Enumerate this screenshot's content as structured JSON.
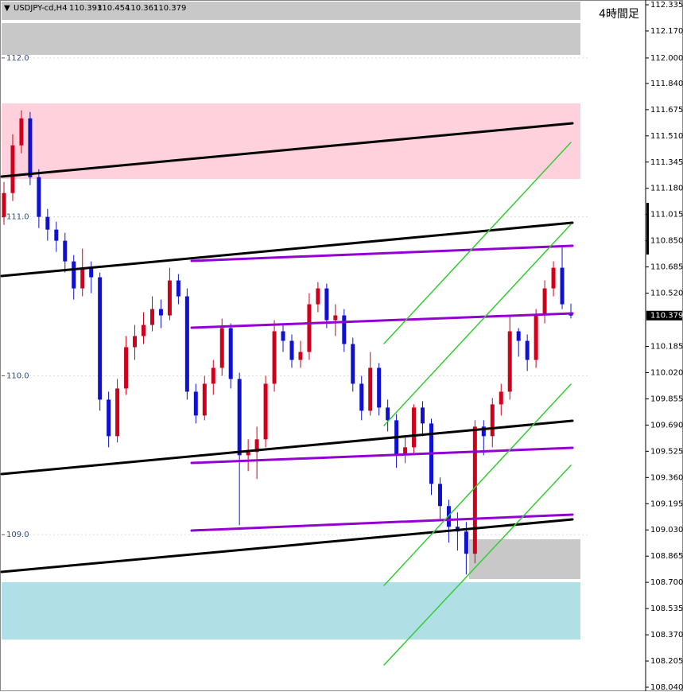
{
  "chart_data": {
    "type": "candlestick",
    "symbol": "USDJPY-cd,H4",
    "timeframe_label": "4時間足",
    "up_color": "#d0001a",
    "down_color": "#1010d0",
    "ylim": [
      108.02,
      112.365
    ],
    "yticks": [
      {
        "value": 112.335,
        "label": "112.335"
      },
      {
        "value": 112.17,
        "label": "112.170"
      },
      {
        "value": 112.0,
        "label": "112.000"
      },
      {
        "value": 111.84,
        "label": "111.840"
      },
      {
        "value": 111.675,
        "label": "111.675"
      },
      {
        "value": 111.51,
        "label": "111.510"
      },
      {
        "value": 111.345,
        "label": "111.345"
      },
      {
        "value": 111.18,
        "label": "111.180"
      },
      {
        "value": 111.015,
        "label": "111.015"
      },
      {
        "value": 110.85,
        "label": "110.850"
      },
      {
        "value": 110.685,
        "label": "110.685"
      },
      {
        "value": 110.52,
        "label": "110.520"
      },
      {
        "value": 110.185,
        "label": "110.185"
      },
      {
        "value": 110.02,
        "label": "110.020"
      },
      {
        "value": 109.855,
        "label": "109.855"
      },
      {
        "value": 109.69,
        "label": "109.690"
      },
      {
        "value": 109.525,
        "label": "109.525"
      },
      {
        "value": 109.36,
        "label": "109.360"
      },
      {
        "value": 109.195,
        "label": "109.195"
      },
      {
        "value": 109.03,
        "label": "109.030"
      },
      {
        "value": 108.865,
        "label": "108.865"
      },
      {
        "value": 108.7,
        "label": "108.700"
      },
      {
        "value": 108.535,
        "label": "108.535"
      },
      {
        "value": 108.37,
        "label": "108.370"
      },
      {
        "value": 108.205,
        "label": "108.205"
      },
      {
        "value": 108.04,
        "label": "108.040"
      }
    ],
    "level_ticks": [
      {
        "value": 112,
        "label": "112.0"
      },
      {
        "value": 111,
        "label": "111.0"
      },
      {
        "value": 110,
        "label": "110.0"
      },
      {
        "value": 109,
        "label": "109.0"
      }
    ],
    "grid": true,
    "open": [
      111.0,
      111.15,
      111.45,
      111.62,
      111.25,
      111.0,
      110.92,
      110.85,
      110.72,
      110.55,
      110.68,
      110.62,
      109.85,
      109.62,
      109.92,
      110.18,
      110.25,
      110.32,
      110.42,
      110.38,
      110.6,
      110.5,
      109.9,
      109.75,
      109.95,
      110.05,
      110.3,
      109.98,
      109.5,
      109.52,
      109.6,
      109.95,
      110.28,
      110.22,
      110.1,
      110.15,
      110.45,
      110.55,
      110.35,
      110.38,
      110.2,
      109.95,
      109.78,
      110.05,
      109.8,
      109.72,
      109.5,
      109.55,
      109.8,
      109.7,
      109.32,
      109.18,
      109.05,
      109.02,
      108.88,
      109.68,
      109.62,
      109.82,
      109.9,
      110.28,
      110.22,
      110.1,
      110.38,
      110.55,
      110.68,
      110.393
    ],
    "high": [
      111.22,
      111.52,
      111.67,
      111.66,
      111.3,
      111.05,
      110.97,
      110.9,
      110.76,
      110.8,
      110.72,
      110.65,
      109.9,
      109.98,
      110.25,
      110.32,
      110.4,
      110.5,
      110.48,
      110.68,
      110.64,
      110.55,
      109.95,
      110.0,
      110.1,
      110.36,
      110.33,
      110.02,
      109.6,
      109.68,
      110.0,
      110.35,
      110.33,
      110.26,
      110.22,
      110.52,
      110.59,
      110.58,
      110.45,
      110.42,
      110.24,
      110.0,
      110.15,
      110.08,
      109.85,
      109.76,
      109.62,
      109.82,
      109.84,
      109.73,
      109.36,
      109.22,
      109.14,
      109.08,
      109.72,
      109.72,
      109.86,
      109.95,
      110.38,
      110.3,
      110.26,
      110.42,
      110.6,
      110.72,
      110.82,
      110.454
    ],
    "low": [
      110.95,
      111.1,
      111.4,
      111.2,
      110.93,
      110.85,
      110.78,
      110.65,
      110.48,
      110.5,
      110.52,
      109.78,
      109.55,
      109.58,
      109.88,
      110.1,
      110.2,
      110.28,
      110.3,
      110.35,
      110.45,
      109.85,
      109.7,
      109.72,
      109.88,
      110.0,
      109.92,
      109.06,
      109.4,
      109.35,
      109.55,
      109.9,
      110.15,
      110.05,
      110.05,
      110.1,
      110.4,
      110.3,
      110.25,
      110.15,
      109.9,
      109.72,
      109.75,
      109.75,
      109.65,
      109.42,
      109.45,
      109.5,
      109.62,
      109.25,
      109.1,
      108.95,
      108.9,
      108.75,
      108.82,
      109.5,
      109.55,
      109.75,
      109.85,
      110.12,
      110.03,
      110.05,
      110.33,
      110.5,
      110.42,
      110.361
    ],
    "close": [
      111.15,
      111.45,
      111.62,
      111.25,
      111.0,
      110.92,
      110.85,
      110.72,
      110.55,
      110.68,
      110.62,
      109.85,
      109.62,
      109.92,
      110.18,
      110.25,
      110.32,
      110.42,
      110.38,
      110.6,
      110.5,
      109.9,
      109.75,
      109.95,
      110.05,
      110.3,
      109.98,
      109.5,
      109.52,
      109.6,
      109.95,
      110.28,
      110.22,
      110.1,
      110.15,
      110.45,
      110.55,
      110.35,
      110.38,
      110.2,
      109.95,
      109.78,
      110.05,
      109.8,
      109.72,
      109.5,
      109.55,
      109.8,
      109.7,
      109.32,
      109.18,
      109.05,
      109.02,
      108.88,
      109.68,
      109.62,
      109.82,
      109.9,
      110.28,
      110.22,
      110.1,
      110.38,
      110.55,
      110.68,
      110.45,
      110.379
    ]
  }
}
